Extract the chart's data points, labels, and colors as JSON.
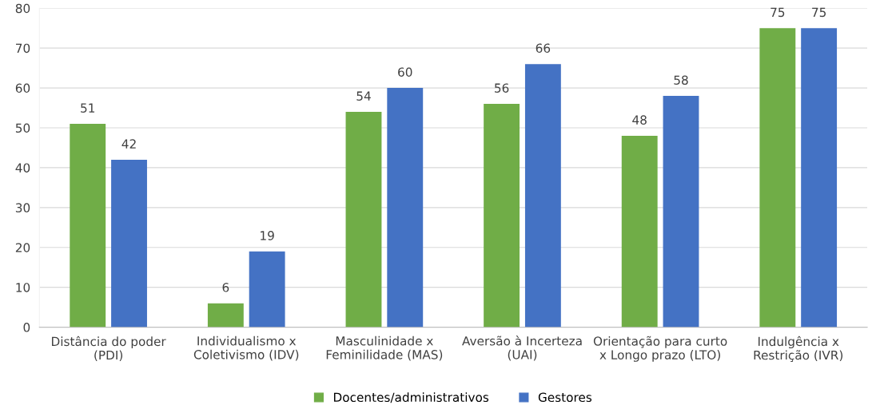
{
  "chart_data": {
    "type": "bar",
    "categories": [
      "Distância do poder\n(PDI)",
      "Individualismo x\nColetivismo (IDV)",
      "Masculinidade x\nFeminilidade (MAS)",
      "Aversão à Incerteza\n(UAI)",
      "Orientação para curto\nx Longo prazo (LTO)",
      "Indulgência x\nRestrição (IVR)"
    ],
    "series": [
      {
        "name": "Docentes/administrativos",
        "color": "#70ad47",
        "values": [
          51,
          6,
          54,
          56,
          48,
          75
        ]
      },
      {
        "name": "Gestores",
        "color": "#4472c4",
        "values": [
          42,
          19,
          60,
          66,
          58,
          75
        ]
      }
    ],
    "ylim": [
      0,
      80
    ],
    "yticks": [
      0,
      10,
      20,
      30,
      40,
      50,
      60,
      70,
      80
    ],
    "grid": "y",
    "legend": "bottom",
    "data_labels": true
  }
}
